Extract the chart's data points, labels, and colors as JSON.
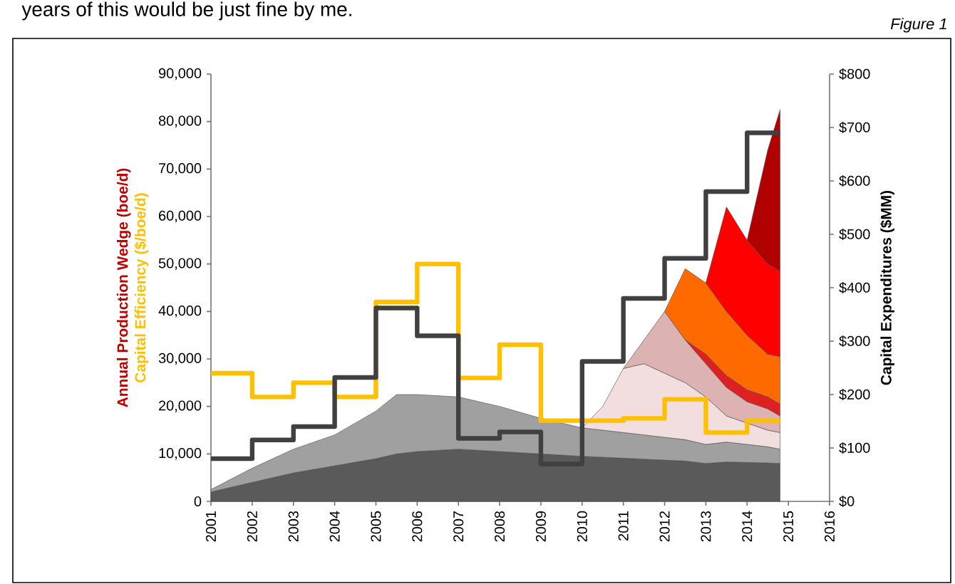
{
  "chart_data": {
    "type": "area",
    "stacked": true,
    "ylabel": "Annual Production Wedge (boe/d)",
    "y2label": "Capital Expenditures ($MM)",
    "annotations": [
      "years of this would be just fine by me.",
      "Figure 1"
    ],
    "xlim": [
      2001,
      2016
    ],
    "xticks": [
      2001,
      2002,
      2003,
      2004,
      2005,
      2006,
      2007,
      2008,
      2009,
      2010,
      2011,
      2012,
      2013,
      2014,
      2015,
      2016
    ],
    "ylim": [
      0,
      90000
    ],
    "yticks": [
      0,
      {
        "value": 10000,
        "label": "10,000"
      },
      {
        "value": 20000,
        "label": "20,000"
      },
      {
        "value": 30000,
        "label": "30,000"
      },
      {
        "value": 40000,
        "label": "40,000"
      },
      {
        "value": 50000,
        "label": "50,000"
      },
      {
        "value": 60000,
        "label": "60,000"
      },
      {
        "value": 70000,
        "label": "70,000"
      },
      {
        "value": 80000,
        "label": "80,000"
      },
      {
        "value": 90000,
        "label": "90,000"
      }
    ],
    "y2lim": [
      0,
      800
    ],
    "y2ticks": [
      {
        "value": 0,
        "label": "$0"
      },
      {
        "value": 100,
        "label": "$100"
      },
      {
        "value": 200,
        "label": "$200"
      },
      {
        "value": 300,
        "label": "$300"
      },
      {
        "value": 400,
        "label": "$400"
      },
      {
        "value": 500,
        "label": "$500"
      },
      {
        "value": 600,
        "label": "$600"
      },
      {
        "value": 700,
        "label": "$700"
      },
      {
        "value": 800,
        "label": "$800"
      }
    ],
    "x": [
      2001,
      2002,
      2003,
      2004,
      2005,
      2005.5,
      2006,
      2007,
      2008,
      2009,
      2010,
      2010.5,
      2011,
      2011.5,
      2012,
      2012.5,
      2013,
      2013.5,
      2014,
      2014.5,
      2014.8
    ],
    "series": [
      {
        "color": "#5a5a5a",
        "values": [
          2000,
          4000,
          6000,
          7500,
          9000,
          10000,
          10500,
          11000,
          10500,
          10000,
          9500,
          9300,
          9100,
          8900,
          8700,
          8500,
          8000,
          8300,
          8200,
          8100,
          8000
        ]
      },
      {
        "color": "#a0a0a0",
        "values": [
          500,
          3000,
          5000,
          6500,
          10000,
          12500,
          12000,
          11000,
          9500,
          7500,
          6000,
          5700,
          5400,
          5100,
          4800,
          4500,
          4000,
          4200,
          3800,
          3400,
          3000
        ]
      },
      {
        "color": "#f2dede",
        "values": [
          null,
          null,
          null,
          null,
          null,
          null,
          null,
          null,
          null,
          null,
          0,
          5000,
          13500,
          15000,
          13500,
          12000,
          10000,
          5500,
          4500,
          3500,
          3500
        ]
      },
      {
        "color": "#dcb2b2",
        "values": [
          null,
          null,
          null,
          null,
          null,
          null,
          null,
          null,
          null,
          null,
          null,
          null,
          0,
          5000,
          13000,
          9000,
          7000,
          6000,
          4500,
          4500,
          3500
        ]
      },
      {
        "color": "#e02020",
        "values": [
          null,
          null,
          null,
          null,
          null,
          null,
          null,
          null,
          null,
          null,
          null,
          null,
          null,
          null,
          null,
          0,
          2000,
          2500,
          2500,
          2500,
          2500
        ]
      },
      {
        "color": "#ff6a00",
        "values": [
          null,
          null,
          null,
          null,
          null,
          null,
          null,
          null,
          null,
          null,
          null,
          null,
          null,
          null,
          0,
          15000,
          15000,
          13500,
          11500,
          9000,
          10000
        ]
      },
      {
        "color": "#ff0000",
        "values": [
          null,
          null,
          null,
          null,
          null,
          null,
          null,
          null,
          null,
          null,
          null,
          null,
          null,
          null,
          null,
          null,
          0,
          22000,
          20000,
          19000,
          18000
        ]
      },
      {
        "color": "#b00000",
        "values": [
          null,
          null,
          null,
          null,
          null,
          null,
          null,
          null,
          null,
          null,
          null,
          null,
          null,
          null,
          null,
          null,
          null,
          null,
          0,
          24000,
          34000
        ]
      },
      {
        "type": "step",
        "name": "Capital Efficiency ($/boe/d)",
        "color": "#ffc000",
        "x": [
          2001,
          2002,
          2003,
          2004,
          2005,
          2006,
          2007,
          2008,
          2009,
          2010,
          2011,
          2012,
          2013,
          2014,
          2014.8
        ],
        "values": [
          27000,
          22000,
          25000,
          22000,
          42000,
          50000,
          26000,
          33000,
          17000,
          17000,
          17500,
          21500,
          14500,
          17000,
          17000
        ]
      },
      {
        "type": "step",
        "axis": "y2",
        "color": "#404040",
        "x": [
          2001,
          2002,
          2003,
          2004,
          2005,
          2006,
          2007,
          2008,
          2009,
          2010,
          2011,
          2012,
          2013,
          2014,
          2014.8
        ],
        "values": [
          80,
          115,
          140,
          232,
          362,
          310,
          118,
          130,
          70,
          262,
          380,
          455,
          580,
          690,
          690
        ]
      }
    ]
  }
}
